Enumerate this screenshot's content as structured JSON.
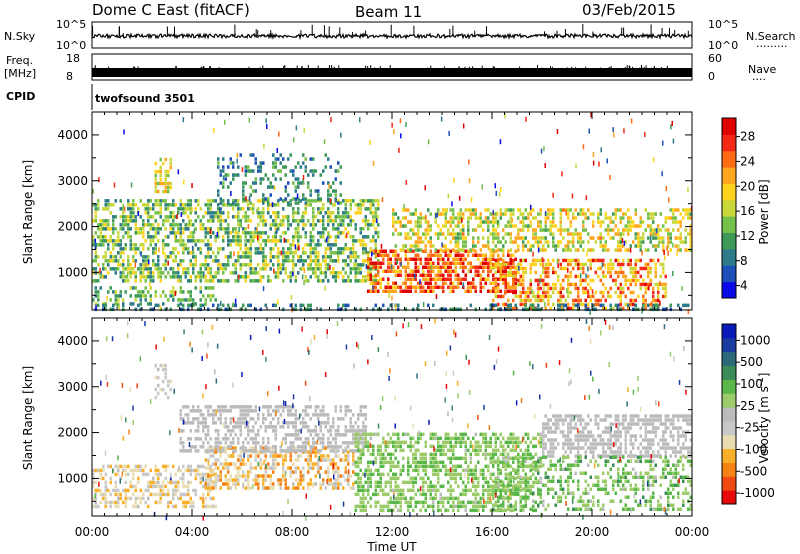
{
  "header": {
    "station": "Dome C East (fitACF)",
    "beam": "Beam 11",
    "date": "03/Feb/2015"
  },
  "top_panels": {
    "nsky": {
      "label": "N.Sky",
      "ticks": [
        "10^5",
        "10^0"
      ]
    },
    "nsearch": {
      "label": "N.Search",
      "legend_line": "·········",
      "ticks": [
        "10^5",
        "10^0"
      ]
    },
    "freq": {
      "label_line1": "Freq.",
      "label_line2": "[MHz]",
      "ticks": [
        "18",
        "8"
      ]
    },
    "nave": {
      "label": "Nave",
      "legend_line": "····",
      "ticks": [
        "60",
        "0"
      ]
    },
    "cpid": {
      "label": "CPID",
      "value": "twofsound 3501"
    }
  },
  "chart_data": [
    {
      "type": "heatmap",
      "title": "",
      "xlabel": "Time UT",
      "ylabel": "Slant Range [km]",
      "xlim": [
        "00:00",
        "24:00"
      ],
      "ylim": [
        180,
        4500
      ],
      "x_ticks": [
        "00:00",
        "04:00",
        "08:00",
        "12:00",
        "16:00",
        "20:00",
        "00:00"
      ],
      "y_ticks": [
        "1000",
        "2000",
        "3000",
        "4000"
      ],
      "colorbar": {
        "label": "Power [dB]",
        "ticks": [
          "28",
          "24",
          "20",
          "16",
          "12",
          "8",
          "4"
        ],
        "range": [
          0,
          30
        ],
        "colors": [
          "#0a0ae8",
          "#1d4fb8",
          "#2c7a8a",
          "#3d9a58",
          "#74c04a",
          "#c8d83a",
          "#ffd21e",
          "#ffa51e",
          "#ff6a14",
          "#f42814",
          "#e00000"
        ]
      },
      "regions": [
        {
          "t": [
            0.0,
            11.5
          ],
          "r": [
            800,
            2600
          ],
          "value_range": [
            6,
            18
          ],
          "density": 0.55
        },
        {
          "t": [
            2.5,
            3.2
          ],
          "r": [
            2800,
            3500
          ],
          "value_range": [
            10,
            22
          ],
          "density": 0.4
        },
        {
          "t": [
            5.0,
            10.0
          ],
          "r": [
            2500,
            3600
          ],
          "value_range": [
            4,
            12
          ],
          "density": 0.25
        },
        {
          "t": [
            0.0,
            5.0
          ],
          "r": [
            300,
            700
          ],
          "value_range": [
            6,
            16
          ],
          "density": 0.4
        },
        {
          "t": [
            11.0,
            17.0
          ],
          "r": [
            600,
            1500
          ],
          "value_range": [
            18,
            30
          ],
          "density": 0.65
        },
        {
          "t": [
            12.0,
            24.0
          ],
          "r": [
            1500,
            2400
          ],
          "value_range": [
            10,
            22
          ],
          "density": 0.5
        },
        {
          "t": [
            16.0,
            23.0
          ],
          "r": [
            250,
            1300
          ],
          "value_range": [
            14,
            28
          ],
          "density": 0.5
        },
        {
          "t": [
            0.0,
            24.0
          ],
          "r": [
            180,
            320
          ],
          "value_range": [
            4,
            10
          ],
          "density": 0.35
        }
      ]
    },
    {
      "type": "heatmap",
      "title": "",
      "xlabel": "Time UT",
      "ylabel": "Slant Range [km]",
      "xlim": [
        "00:00",
        "24:00"
      ],
      "ylim": [
        180,
        4500
      ],
      "x_ticks": [
        "00:00",
        "04:00",
        "08:00",
        "12:00",
        "16:00",
        "20:00",
        "00:00"
      ],
      "y_ticks": [
        "1000",
        "2000",
        "3000",
        "4000"
      ],
      "colorbar": {
        "label": "Velocity [m s^-1]",
        "ticks": [
          "1000",
          "500",
          "100",
          "25",
          "-25",
          "-100",
          "-500",
          "-1000"
        ],
        "range": [
          -1200,
          1200
        ],
        "colors": [
          "#e80a0a",
          "#f04a14",
          "#f58214",
          "#f8b028",
          "#e8dcb0",
          "#c8c8c8",
          "#bcbcbc",
          "#9ccc6a",
          "#5ab84a",
          "#3c8c5a",
          "#2c6a7a",
          "#1a3ca0",
          "#0a1ab8"
        ]
      },
      "regions": [
        {
          "t": [
            0.0,
            5.0
          ],
          "r": [
            400,
            1300
          ],
          "value_range": [
            -600,
            -60
          ],
          "density": 0.5
        },
        {
          "t": [
            4.5,
            10.5
          ],
          "r": [
            800,
            1700
          ],
          "value_range": [
            -800,
            -80
          ],
          "density": 0.55
        },
        {
          "t": [
            3.5,
            11.0
          ],
          "r": [
            1600,
            2600
          ],
          "value_range": [
            -40,
            30
          ],
          "density": 0.55
        },
        {
          "t": [
            10.5,
            18.0
          ],
          "r": [
            300,
            2000
          ],
          "value_range": [
            80,
            400
          ],
          "density": 0.55
        },
        {
          "t": [
            18.0,
            24.0
          ],
          "r": [
            1500,
            2400
          ],
          "value_range": [
            -30,
            30
          ],
          "density": 0.6
        },
        {
          "t": [
            16.0,
            24.0
          ],
          "r": [
            300,
            1500
          ],
          "value_range": [
            60,
            500
          ],
          "density": 0.4
        },
        {
          "t": [
            2.5,
            3.2
          ],
          "r": [
            2800,
            3500
          ],
          "value_range": [
            -400,
            -50
          ],
          "density": 0.35
        }
      ]
    }
  ]
}
